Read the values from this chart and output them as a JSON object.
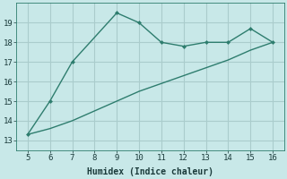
{
  "xlabel": "Humidex (Indice chaleur)",
  "line1_x": [
    5,
    6,
    7,
    9,
    10,
    11,
    12,
    13,
    14,
    15,
    16
  ],
  "line1_y": [
    13.3,
    15.0,
    17.0,
    19.5,
    19.0,
    18.0,
    17.8,
    18.0,
    18.0,
    18.7,
    18.0
  ],
  "line2_x": [
    5,
    6,
    7,
    9,
    10,
    11,
    12,
    13,
    14,
    15,
    16
  ],
  "line2_y": [
    13.3,
    13.6,
    14.0,
    15.0,
    15.5,
    15.9,
    16.3,
    16.7,
    17.1,
    17.6,
    18.0
  ],
  "line_color": "#2e7d6e",
  "background_color": "#c8e8e8",
  "grid_color": "#aacccc",
  "xlim": [
    4.5,
    16.5
  ],
  "ylim": [
    12.5,
    20.0
  ],
  "xticks": [
    5,
    6,
    7,
    8,
    9,
    10,
    11,
    12,
    13,
    14,
    15,
    16
  ],
  "yticks": [
    13,
    14,
    15,
    16,
    17,
    18,
    19
  ],
  "tick_fontsize": 6.5,
  "xlabel_fontsize": 7
}
